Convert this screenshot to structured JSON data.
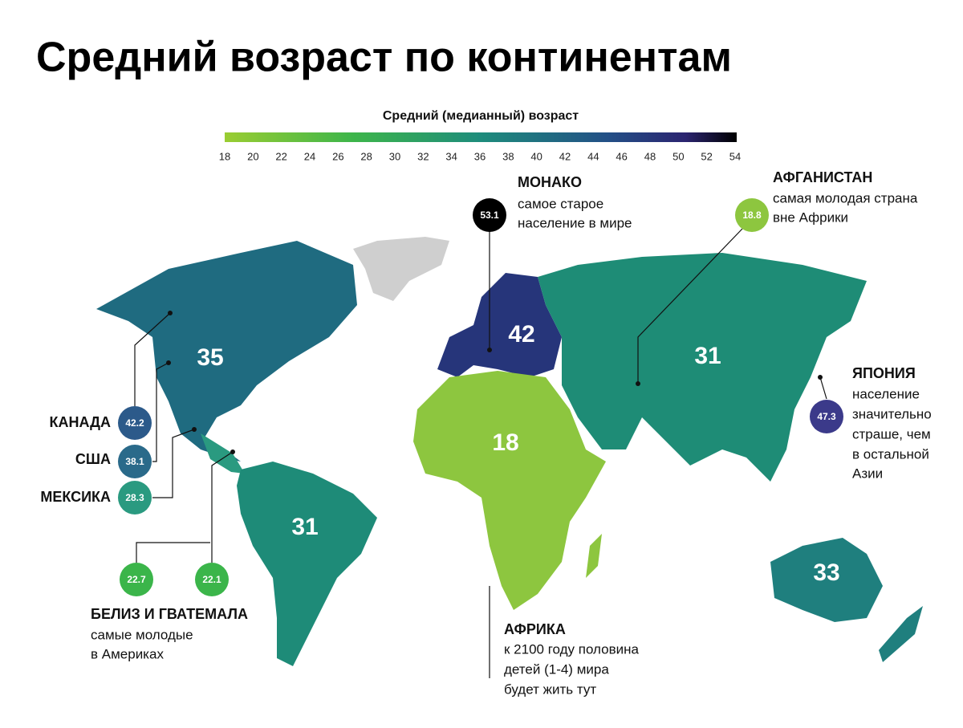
{
  "title": "Средний возраст по континентам",
  "legend": {
    "title": "Средний (медианный) возраст",
    "ticks": [
      18,
      20,
      22,
      24,
      26,
      28,
      30,
      32,
      34,
      36,
      38,
      40,
      42,
      44,
      46,
      48,
      50,
      52,
      54
    ]
  },
  "continents": [
    35,
    42,
    31,
    18,
    31,
    33
  ],
  "callouts": {
    "monaco": {
      "title": "МОНАКО",
      "value": 53.1,
      "lines": [
        "самое старое",
        "население в мире"
      ]
    },
    "afghanistan": {
      "title": "АФГАНИСТАН",
      "value": 18.8,
      "lines": [
        "самая молодая страна",
        "вне Африки"
      ]
    },
    "japan": {
      "title": "ЯПОНИЯ",
      "value": 47.3,
      "lines": [
        "население",
        "значительно",
        "страше, чем",
        "в остальной",
        "Азии"
      ]
    },
    "canada": {
      "title": "КАНАДА",
      "value": 42.2
    },
    "usa": {
      "title": "США",
      "value": 38.1
    },
    "mexico": {
      "title": "МЕКСИКА",
      "value": 28.3
    },
    "belize_guatemala": {
      "title": "БЕЛИЗ И ГВАТЕМАЛА",
      "values": [
        22.7,
        22.1
      ],
      "lines": [
        "самые молодые",
        "в Америках"
      ]
    },
    "africa": {
      "title": "АФРИКА",
      "lines": [
        "к 2100 году половина",
        "детей (1-4) мира",
        "будет жить тут"
      ]
    }
  }
}
